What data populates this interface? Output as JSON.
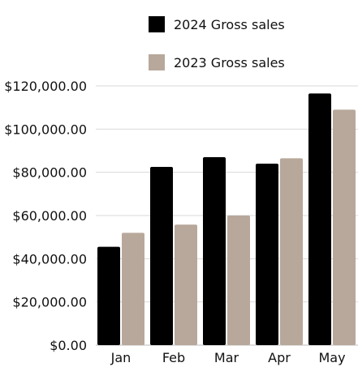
{
  "chart_data": {
    "type": "bar",
    "categories": [
      "Jan",
      "Feb",
      "Mar",
      "Apr",
      "May"
    ],
    "series": [
      {
        "name": "2024 Gross sales",
        "color": "#000000",
        "values": [
          45500,
          82500,
          87000,
          84000,
          116500
        ]
      },
      {
        "name": "2023 Gross sales",
        "color": "#b8a89b",
        "values": [
          52000,
          55800,
          60000,
          86500,
          109000
        ]
      }
    ],
    "y_ticks": [
      "$0.00",
      "$20,000.00",
      "$40,000.00",
      "$60,000.00",
      "$80,000.00",
      "$100,000.00",
      "$120,000.00"
    ],
    "ylim": [
      0,
      120000
    ],
    "grid": true,
    "legend_position": "top-right"
  }
}
